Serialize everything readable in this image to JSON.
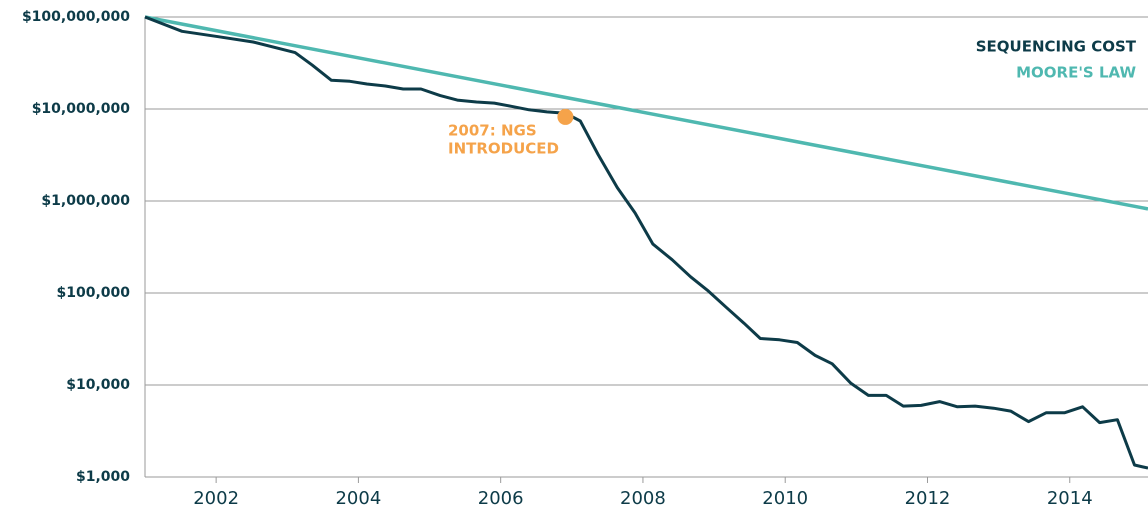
{
  "chart_data": {
    "type": "line",
    "log_y": true,
    "grid": true,
    "legend": "top-right",
    "xlim": [
      2001,
      2015.1
    ],
    "xticks": [
      2002,
      2004,
      2006,
      2008,
      2010,
      2012,
      2014
    ],
    "ylim": [
      1000,
      100000000
    ],
    "yticks": [
      {
        "value": 1000,
        "label": "$1,000"
      },
      {
        "value": 10000,
        "label": "$10,000"
      },
      {
        "value": 100000,
        "label": "$100,000"
      },
      {
        "value": 1000000,
        "label": "$1,000,000"
      },
      {
        "value": 10000000,
        "label": "$10,000,000"
      },
      {
        "value": 100000000,
        "label": "$100,000,000"
      }
    ],
    "series": [
      {
        "name": "SEQUENCING COST",
        "color": "#0d3b48",
        "x": [
          2001.0,
          2001.52,
          2002.03,
          2002.52,
          2003.11,
          2003.35,
          2003.62,
          2003.88,
          2004.12,
          2004.38,
          2004.63,
          2004.88,
          2005.15,
          2005.39,
          2005.66,
          2005.91,
          2006.15,
          2006.4,
          2006.65,
          2006.91,
          2007.12,
          2007.37,
          2007.64,
          2007.89,
          2008.14,
          2008.41,
          2008.67,
          2008.92,
          2009.17,
          2009.42,
          2009.65,
          2009.92,
          2010.17,
          2010.42,
          2010.66,
          2010.92,
          2011.17,
          2011.42,
          2011.66,
          2011.91,
          2012.17,
          2012.42,
          2012.67,
          2012.93,
          2013.17,
          2013.42,
          2013.67,
          2013.93,
          2014.18,
          2014.42,
          2014.67,
          2014.91,
          2015.1
        ],
        "values": [
          100000000,
          70000000,
          61000000,
          53500000,
          41000000,
          30000000,
          20500000,
          20000000,
          18700000,
          17800000,
          16500000,
          16500000,
          14000000,
          12500000,
          11900000,
          11600000,
          10700000,
          9800000,
          9300000,
          9000000,
          7400000,
          3200000,
          1400000,
          740000,
          340000,
          230000,
          150000,
          105000,
          70000,
          47000,
          32000,
          31000,
          29000,
          21000,
          17000,
          10500,
          7700,
          7700,
          5900,
          6000,
          6600,
          5800,
          5900,
          5600,
          5200,
          4000,
          5000,
          5000,
          5800,
          3900,
          4200,
          1350,
          1250
        ]
      },
      {
        "name": "MOORE'S LAW",
        "color": "#4fb8b0",
        "x": [
          2001,
          2015.1
        ],
        "values": [
          100000000,
          820000
        ]
      }
    ],
    "annotation": {
      "text": [
        "2007: NGS",
        "INTRODUCED"
      ],
      "x": 2006.91,
      "value": 8200000,
      "color": "#f5a34a"
    }
  }
}
